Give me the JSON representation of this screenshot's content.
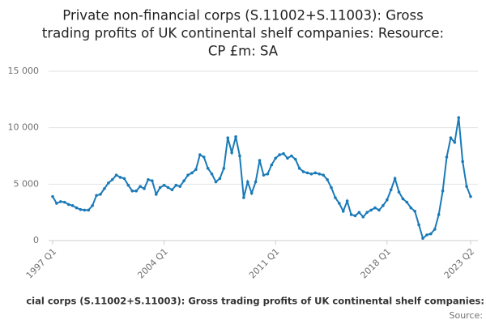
{
  "chart_data": {
    "type": "line",
    "title": [
      "Private non-financial corps (S.11002+S.11003): Gross",
      "trading profits of UK continental shelf companies: Resource:",
      "CP £m: SA"
    ],
    "footnote": "cial corps (S.11002+S.11003): Gross trading profits of UK continental shelf companies:",
    "source": "Source:",
    "categories": [
      "1997 Q1",
      null,
      null,
      null,
      null,
      null,
      null,
      null,
      null,
      null,
      null,
      null,
      null,
      null,
      null,
      null,
      null,
      null,
      null,
      null,
      null,
      null,
      null,
      null,
      null,
      null,
      null,
      null,
      "2004 Q1",
      null,
      null,
      null,
      null,
      null,
      null,
      null,
      null,
      null,
      null,
      null,
      null,
      null,
      null,
      null,
      null,
      null,
      null,
      null,
      null,
      null,
      null,
      null,
      null,
      null,
      null,
      null,
      "2011 Q1",
      null,
      null,
      null,
      null,
      null,
      null,
      null,
      null,
      null,
      null,
      null,
      null,
      null,
      null,
      null,
      null,
      null,
      null,
      null,
      null,
      null,
      null,
      null,
      null,
      null,
      null,
      null,
      "2018 Q1",
      null,
      null,
      null,
      null,
      null,
      null,
      null,
      null,
      null,
      null,
      null,
      null,
      null,
      null,
      null,
      null,
      null,
      null,
      null,
      null,
      "2023 Q2"
    ],
    "series": [
      {
        "color": "#1a7ab8",
        "values": [
          3900,
          3300,
          3450,
          3400,
          3200,
          3100,
          2900,
          2750,
          2700,
          2700,
          3100,
          4000,
          4100,
          4600,
          5100,
          5400,
          5800,
          5600,
          5500,
          4900,
          4400,
          4400,
          4800,
          4600,
          5400,
          5300,
          4100,
          4700,
          4900,
          4700,
          4500,
          4900,
          4800,
          5300,
          5800,
          6000,
          6300,
          7600,
          7400,
          6400,
          5900,
          5200,
          5500,
          6400,
          9100,
          7800,
          9200,
          7500,
          3800,
          5200,
          4200,
          5200,
          7100,
          5800,
          5900,
          6700,
          7300,
          7600,
          7700,
          7300,
          7500,
          7200,
          6400,
          6100,
          6000,
          5900,
          6000,
          5900,
          5800,
          5400,
          4700,
          3800,
          3300,
          2600,
          3500,
          2300,
          2200,
          2500,
          2100,
          2500,
          2700,
          2900,
          2700,
          3100,
          3600,
          4500,
          5500,
          4300,
          3700,
          3400,
          2900,
          2600,
          1400,
          200,
          500,
          600,
          1000,
          2300,
          4400,
          7400,
          9100,
          8700,
          10900,
          7000,
          4800,
          3900
        ]
      }
    ],
    "ylim": [
      0,
      15000
    ],
    "yticks": [
      0,
      {
        "value": 5000,
        "label": "5 000"
      },
      {
        "value": 10000,
        "label": "10 000"
      },
      {
        "value": 15000,
        "label": "15 000"
      }
    ],
    "grid": true
  }
}
